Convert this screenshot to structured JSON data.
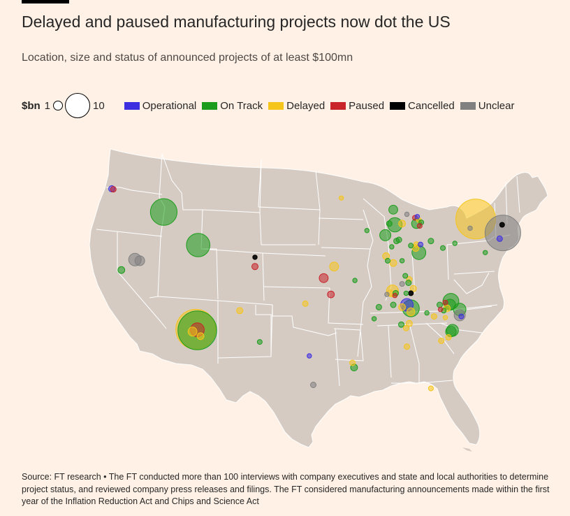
{
  "title": "Delayed and paused manufacturing projects now dot the US",
  "subtitle": "Location, size and status of announced projects of at least $100mn",
  "legend": {
    "size_label": "$bn",
    "size_small": "1",
    "size_large": "10",
    "statuses": [
      {
        "key": "operational",
        "label": "Operational",
        "color": "#3d2ee0"
      },
      {
        "key": "ontrack",
        "label": "On Track",
        "color": "#1c9c1c"
      },
      {
        "key": "delayed",
        "label": "Delayed",
        "color": "#f5c51b"
      },
      {
        "key": "paused",
        "label": "Paused",
        "color": "#c8242a"
      },
      {
        "key": "cancelled",
        "label": "Cancelled",
        "color": "#000000"
      },
      {
        "key": "unclear",
        "label": "Unclear",
        "color": "#808080"
      }
    ]
  },
  "colors": {
    "background": "#fff1e5",
    "land": "#d5cbc3",
    "borders": "#ffffff"
  },
  "projects": [
    {
      "status": "operational",
      "bn": 0.25,
      "lon": -122.7,
      "lat": 45.6
    },
    {
      "status": "paused",
      "bn": 0.2,
      "lon": -122.5,
      "lat": 45.55
    },
    {
      "status": "ontrack",
      "bn": 4.5,
      "lon": -116.2,
      "lat": 43.6
    },
    {
      "status": "ontrack",
      "bn": 0.3,
      "lon": -121.5,
      "lat": 38.6
    },
    {
      "status": "unclear",
      "bn": 1.0,
      "lon": -119.8,
      "lat": 39.5
    },
    {
      "status": "unclear",
      "bn": 0.6,
      "lon": -119.2,
      "lat": 39.4
    },
    {
      "status": "ontrack",
      "bn": 3.5,
      "lon": -111.9,
      "lat": 40.75
    },
    {
      "status": "ontrack",
      "bn": 9.5,
      "lon": -112.0,
      "lat": 33.4
    },
    {
      "status": "delayed",
      "bn": 10.0,
      "lon": -112.2,
      "lat": 33.5
    },
    {
      "status": "paused",
      "bn": 1.2,
      "lon": -112.0,
      "lat": 33.45
    },
    {
      "status": "delayed",
      "bn": 0.5,
      "lon": -112.6,
      "lat": 33.3
    },
    {
      "status": "delayed",
      "bn": 0.3,
      "lon": -111.6,
      "lat": 32.9
    },
    {
      "status": "cancelled",
      "bn": 0.1,
      "lon": -104.8,
      "lat": 39.7
    },
    {
      "status": "paused",
      "bn": 0.25,
      "lon": -104.8,
      "lat": 38.9
    },
    {
      "status": "delayed",
      "bn": 0.25,
      "lon": -106.7,
      "lat": 35.1
    },
    {
      "status": "delayed",
      "bn": 0.2,
      "lon": -98.5,
      "lat": 35.7
    },
    {
      "status": "ontrack",
      "bn": 0.15,
      "lon": -104.2,
      "lat": 32.4
    },
    {
      "status": "operational",
      "bn": 0.12,
      "lon": -98.0,
      "lat": 31.2
    },
    {
      "status": "unclear",
      "bn": 0.2,
      "lon": -97.5,
      "lat": 28.7
    },
    {
      "status": "paused",
      "bn": 0.5,
      "lon": -96.2,
      "lat": 37.9
    },
    {
      "status": "delayed",
      "bn": 0.5,
      "lon": -94.9,
      "lat": 38.9
    },
    {
      "status": "paused",
      "bn": 0.3,
      "lon": -95.3,
      "lat": 36.5
    },
    {
      "status": "delayed",
      "bn": 0.1,
      "lon": -94.0,
      "lat": 44.8
    },
    {
      "status": "ontrack",
      "bn": 0.12,
      "lon": -92.3,
      "lat": 37.7
    },
    {
      "status": "ontrack",
      "bn": 0.1,
      "lon": -90.8,
      "lat": 42.0
    },
    {
      "status": "ontrack",
      "bn": 0.5,
      "lon": -87.5,
      "lat": 43.8
    },
    {
      "status": "ontrack",
      "bn": 0.2,
      "lon": -88.0,
      "lat": 42.6
    },
    {
      "status": "ontrack",
      "bn": 0.8,
      "lon": -88.5,
      "lat": 41.6
    },
    {
      "status": "ontrack",
      "bn": 1.3,
      "lon": -87.3,
      "lat": 42.5
    },
    {
      "status": "delayed",
      "bn": 0.3,
      "lon": -86.4,
      "lat": 42.6
    },
    {
      "status": "unclear",
      "bn": 0.12,
      "lon": -85.8,
      "lat": 43.4
    },
    {
      "status": "paused",
      "bn": 0.15,
      "lon": -84.8,
      "lat": 43.1
    },
    {
      "status": "ontrack",
      "bn": 0.6,
      "lon": -84.6,
      "lat": 42.6
    },
    {
      "status": "operational",
      "bn": 0.12,
      "lon": -84.5,
      "lat": 43.2
    },
    {
      "status": "delayed",
      "bn": 0.15,
      "lon": -84.3,
      "lat": 42.9
    },
    {
      "status": "ontrack",
      "bn": 0.15,
      "lon": -84.0,
      "lat": 42.7
    },
    {
      "status": "paused",
      "bn": 0.15,
      "lon": -84.2,
      "lat": 42.4
    },
    {
      "status": "ontrack",
      "bn": 0.2,
      "lon": -87.1,
      "lat": 41.1
    },
    {
      "status": "ontrack",
      "bn": 0.2,
      "lon": -86.8,
      "lat": 41.2
    },
    {
      "status": "ontrack",
      "bn": 0.12,
      "lon": -87.7,
      "lat": 40.6
    },
    {
      "status": "delayed",
      "bn": 0.3,
      "lon": -88.4,
      "lat": 39.8
    },
    {
      "status": "ontrack",
      "bn": 0.15,
      "lon": -88.2,
      "lat": 39.4
    },
    {
      "status": "delayed",
      "bn": 0.3,
      "lon": -87.5,
      "lat": 39.2
    },
    {
      "status": "ontrack",
      "bn": 0.12,
      "lon": -86.4,
      "lat": 39.4
    },
    {
      "status": "ontrack",
      "bn": 0.15,
      "lon": -85.3,
      "lat": 40.7
    },
    {
      "status": "delayed",
      "bn": 0.2,
      "lon": -84.6,
      "lat": 40.8
    },
    {
      "status": "operational",
      "bn": 0.15,
      "lon": -84.1,
      "lat": 40.8
    },
    {
      "status": "ontrack",
      "bn": 1.2,
      "lon": -84.3,
      "lat": 40.1
    },
    {
      "status": "delayed",
      "bn": 0.3,
      "lon": -84.7,
      "lat": 40.5
    },
    {
      "status": "ontrack",
      "bn": 0.2,
      "lon": -82.8,
      "lat": 41.1
    },
    {
      "status": "ontrack",
      "bn": 0.15,
      "lon": -86.0,
      "lat": 38.1
    },
    {
      "status": "delayed",
      "bn": 0.2,
      "lon": -85.5,
      "lat": 37.8
    },
    {
      "status": "ontrack",
      "bn": 0.2,
      "lon": -85.6,
      "lat": 37.5
    },
    {
      "status": "unclear",
      "bn": 0.15,
      "lon": -86.4,
      "lat": 37.4
    },
    {
      "status": "delayed",
      "bn": 0.25,
      "lon": -85.0,
      "lat": 37.0
    },
    {
      "status": "delayed",
      "bn": 10.0,
      "lon": -77.2,
      "lat": 43.0
    },
    {
      "status": "cancelled",
      "bn": 0.15,
      "lon": -73.9,
      "lat": 42.5
    },
    {
      "status": "unclear",
      "bn": 8.0,
      "lon": -73.8,
      "lat": 41.8
    },
    {
      "status": "operational",
      "bn": 0.2,
      "lon": -74.2,
      "lat": 41.3
    },
    {
      "status": "unclear",
      "bn": 0.1,
      "lon": -77.9,
      "lat": 42.2
    },
    {
      "status": "ontrack",
      "bn": 0.1,
      "lon": -79.8,
      "lat": 40.9
    },
    {
      "status": "ontrack",
      "bn": 0.1,
      "lon": -76.0,
      "lat": 40.1
    },
    {
      "status": "ontrack",
      "bn": 0.15,
      "lon": -81.3,
      "lat": 40.5
    },
    {
      "status": "ontrack",
      "bn": 1.6,
      "lon": -80.3,
      "lat": 35.9
    },
    {
      "status": "ontrack",
      "bn": 0.8,
      "lon": -80.4,
      "lat": 35.6
    },
    {
      "status": "ontrack",
      "bn": 1.0,
      "lon": -79.2,
      "lat": 35.2
    },
    {
      "status": "ontrack",
      "bn": 0.2,
      "lon": -81.7,
      "lat": 35.6
    },
    {
      "status": "paused",
      "bn": 0.15,
      "lon": -81.0,
      "lat": 35.8
    },
    {
      "status": "delayed",
      "bn": 0.3,
      "lon": -80.8,
      "lat": 35.3
    },
    {
      "status": "paused",
      "bn": 0.1,
      "lon": -81.6,
      "lat": 35.2
    },
    {
      "status": "ontrack",
      "bn": 0.15,
      "lon": -81.2,
      "lat": 35.1
    },
    {
      "status": "delayed",
      "bn": 0.12,
      "lon": -81.0,
      "lat": 34.5
    },
    {
      "status": "operational",
      "bn": 0.15,
      "lon": -79.0,
      "lat": 34.6
    },
    {
      "status": "unclear",
      "bn": 0.8,
      "lon": -79.2,
      "lat": 34.7
    },
    {
      "status": "ontrack",
      "bn": 0.7,
      "lon": -80.3,
      "lat": 33.3
    },
    {
      "status": "ontrack",
      "bn": 0.9,
      "lon": -80.1,
      "lat": 33.4
    },
    {
      "status": "delayed",
      "bn": 0.2,
      "lon": -80.6,
      "lat": 32.8
    },
    {
      "status": "delayed",
      "bn": 0.2,
      "lon": -81.5,
      "lat": 32.5
    },
    {
      "status": "delayed",
      "bn": 0.2,
      "lon": -82.4,
      "lat": 34.6
    },
    {
      "status": "ontrack",
      "bn": 0.12,
      "lon": -83.3,
      "lat": 34.9
    },
    {
      "status": "ontrack",
      "bn": 0.2,
      "lon": -87.2,
      "lat": 36.6
    },
    {
      "status": "unclear",
      "bn": 0.12,
      "lon": -88.3,
      "lat": 36.5
    },
    {
      "status": "delayed",
      "bn": 0.25,
      "lon": -87.9,
      "lat": 36.6
    },
    {
      "status": "delayed",
      "bn": 0.9,
      "lon": -87.6,
      "lat": 36.8
    },
    {
      "status": "paused",
      "bn": 0.1,
      "lon": -87.3,
      "lat": 36.4
    },
    {
      "status": "ontrack",
      "bn": 0.1,
      "lon": -85.9,
      "lat": 36.6
    },
    {
      "status": "cancelled",
      "bn": 0.15,
      "lon": -85.3,
      "lat": 36.6
    },
    {
      "status": "operational",
      "bn": 1.0,
      "lon": -85.8,
      "lat": 35.6
    },
    {
      "status": "ontrack",
      "bn": 1.8,
      "lon": -85.3,
      "lat": 35.3
    },
    {
      "status": "delayed",
      "bn": 0.4,
      "lon": -85.3,
      "lat": 35.0
    },
    {
      "status": "ontrack",
      "bn": 0.2,
      "lon": -87.5,
      "lat": 35.6
    },
    {
      "status": "delayed",
      "bn": 0.3,
      "lon": -86.4,
      "lat": 35.4
    },
    {
      "status": "ontrack",
      "bn": 0.2,
      "lon": -89.3,
      "lat": 35.4
    },
    {
      "status": "ontrack",
      "bn": 0.12,
      "lon": -89.9,
      "lat": 34.4
    },
    {
      "status": "delayed",
      "bn": 0.25,
      "lon": -85.5,
      "lat": 34.0
    },
    {
      "status": "ontrack",
      "bn": 0.2,
      "lon": -86.5,
      "lat": 33.9
    },
    {
      "status": "delayed",
      "bn": 0.2,
      "lon": -85.9,
      "lat": 33.6
    },
    {
      "status": "delayed",
      "bn": 0.2,
      "lon": -85.8,
      "lat": 32.0
    },
    {
      "status": "delayed",
      "bn": 0.2,
      "lon": -92.6,
      "lat": 30.6
    },
    {
      "status": "ontrack",
      "bn": 0.3,
      "lon": -92.4,
      "lat": 30.2
    },
    {
      "status": "delayed",
      "bn": 0.15,
      "lon": -82.8,
      "lat": 28.4
    }
  ],
  "source": "Source: FT research • The FT conducted more than 100 interviews with company executives and state and local authorities to determine project status, and reviewed company press releases and filings. The FT considered manufacturing announcements made within the first year of the Inflation Reduction Act and Chips and Science Act"
}
